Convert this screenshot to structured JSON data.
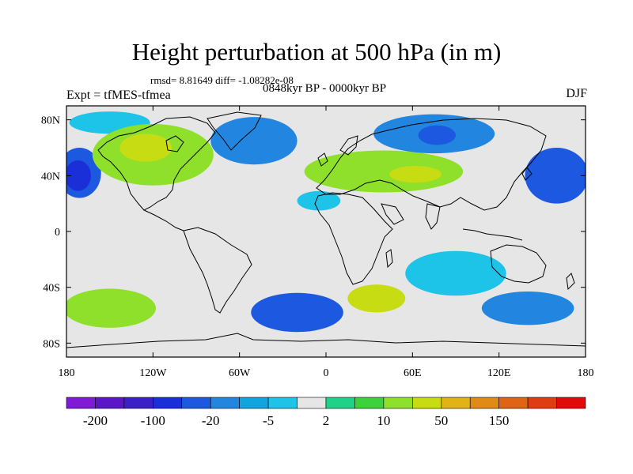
{
  "header": {
    "title": "Height perturbation at 500 hPa (in m)",
    "stats": "rmsd= 8.81649 diff= -1.08282e-08",
    "experiment": "Expt = tfMES-tfmea",
    "period": "0848kyr BP - 0000kyr BP",
    "season": "DJF"
  },
  "map": {
    "lon_range": [
      -180,
      180
    ],
    "lat_range": [
      -90,
      90
    ],
    "projection": "cylindrical-equidistant",
    "x_ticks": [
      {
        "value": -180,
        "label": "180"
      },
      {
        "value": -120,
        "label": "120W"
      },
      {
        "value": -60,
        "label": "60W"
      },
      {
        "value": 0,
        "label": "0"
      },
      {
        "value": 60,
        "label": "60E"
      },
      {
        "value": 120,
        "label": "120E"
      },
      {
        "value": 180,
        "label": "180"
      }
    ],
    "y_ticks": [
      {
        "value": 80,
        "label": "80N"
      },
      {
        "value": 40,
        "label": "40N"
      },
      {
        "value": 0,
        "label": "0"
      },
      {
        "value": -40,
        "label": "40S"
      },
      {
        "value": -80,
        "label": "80S"
      }
    ],
    "background_color": "#e6e6e6"
  },
  "colorbar": {
    "colors": [
      "#7f1bd7",
      "#5a16c8",
      "#3b20c8",
      "#1a2fd8",
      "#1c58e0",
      "#2285e0",
      "#0fa6e0",
      "#1ec3e8",
      "#e6e6e6",
      "#1ed28a",
      "#3cd23c",
      "#8ee02a",
      "#c8dc14",
      "#e0b414",
      "#e08c14",
      "#e06414",
      "#e03c14",
      "#e00a0a"
    ],
    "labels": [
      {
        "after_box": 1,
        "text": "-200"
      },
      {
        "after_box": 3,
        "text": "-100"
      },
      {
        "after_box": 5,
        "text": "-20"
      },
      {
        "after_box": 7,
        "text": "-5"
      },
      {
        "after_box": 9,
        "text": "2"
      },
      {
        "after_box": 11,
        "text": "10"
      },
      {
        "after_box": 13,
        "text": "50"
      },
      {
        "after_box": 15,
        "text": "150"
      }
    ]
  },
  "regions": [
    {
      "name": "nw-pacific-low",
      "lon": -171,
      "lat": 42,
      "rx": 15,
      "ry": 18,
      "level": "strong-negative",
      "color": "#1c58e0"
    },
    {
      "name": "nw-pacific-low-core",
      "lon": -172,
      "lat": 40,
      "rx": 9,
      "ry": 11,
      "level": "very-strong-negative",
      "color": "#1a2fd8"
    },
    {
      "name": "ne-pacific-band",
      "lon": -150,
      "lat": 78,
      "rx": 28,
      "ry": 8,
      "level": "weak-negative",
      "color": "#1ec3e8"
    },
    {
      "name": "north-america-high",
      "lon": -120,
      "lat": 55,
      "rx": 42,
      "ry": 22,
      "level": "positive",
      "color": "#8ee02a"
    },
    {
      "name": "north-america-high-core",
      "lon": -125,
      "lat": 60,
      "rx": 18,
      "ry": 10,
      "level": "strong-positive",
      "color": "#c8dc14"
    },
    {
      "name": "greenland-low",
      "lon": -50,
      "lat": 65,
      "rx": 30,
      "ry": 17,
      "level": "moderate-negative",
      "color": "#2285e0"
    },
    {
      "name": "atlantic-europe-high",
      "lon": 40,
      "lat": 43,
      "rx": 55,
      "ry": 15,
      "level": "positive",
      "color": "#8ee02a"
    },
    {
      "name": "eurasia-high-core",
      "lon": 62,
      "lat": 41,
      "rx": 18,
      "ry": 6,
      "level": "strong-positive",
      "color": "#c8dc14"
    },
    {
      "name": "siberia-low",
      "lon": 75,
      "lat": 70,
      "rx": 42,
      "ry": 14,
      "level": "moderate-negative",
      "color": "#2285e0"
    },
    {
      "name": "siberia-low-core",
      "lon": 77,
      "lat": 69,
      "rx": 13,
      "ry": 7,
      "level": "strong-negative",
      "color": "#1c58e0"
    },
    {
      "name": "west-pacific-low",
      "lon": 160,
      "lat": 40,
      "rx": 22,
      "ry": 20,
      "level": "strong-negative",
      "color": "#1c58e0"
    },
    {
      "name": "north-africa-low",
      "lon": -5,
      "lat": 22,
      "rx": 15,
      "ry": 7,
      "level": "weak-negative",
      "color": "#1ec3e8"
    },
    {
      "name": "south-pacific-high",
      "lon": -150,
      "lat": -55,
      "rx": 32,
      "ry": 14,
      "level": "positive",
      "color": "#8ee02a"
    },
    {
      "name": "south-atlantic-low",
      "lon": -20,
      "lat": -58,
      "rx": 32,
      "ry": 14,
      "level": "strong-negative",
      "color": "#1c58e0"
    },
    {
      "name": "south-indian-high",
      "lon": 35,
      "lat": -48,
      "rx": 20,
      "ry": 10,
      "level": "positive",
      "color": "#c8dc14"
    },
    {
      "name": "south-indian-low",
      "lon": 90,
      "lat": -30,
      "rx": 35,
      "ry": 16,
      "level": "weak-negative",
      "color": "#1ec3e8"
    },
    {
      "name": "southern-ocean-low",
      "lon": 140,
      "lat": -55,
      "rx": 32,
      "ry": 12,
      "level": "moderate-negative",
      "color": "#2285e0"
    }
  ]
}
